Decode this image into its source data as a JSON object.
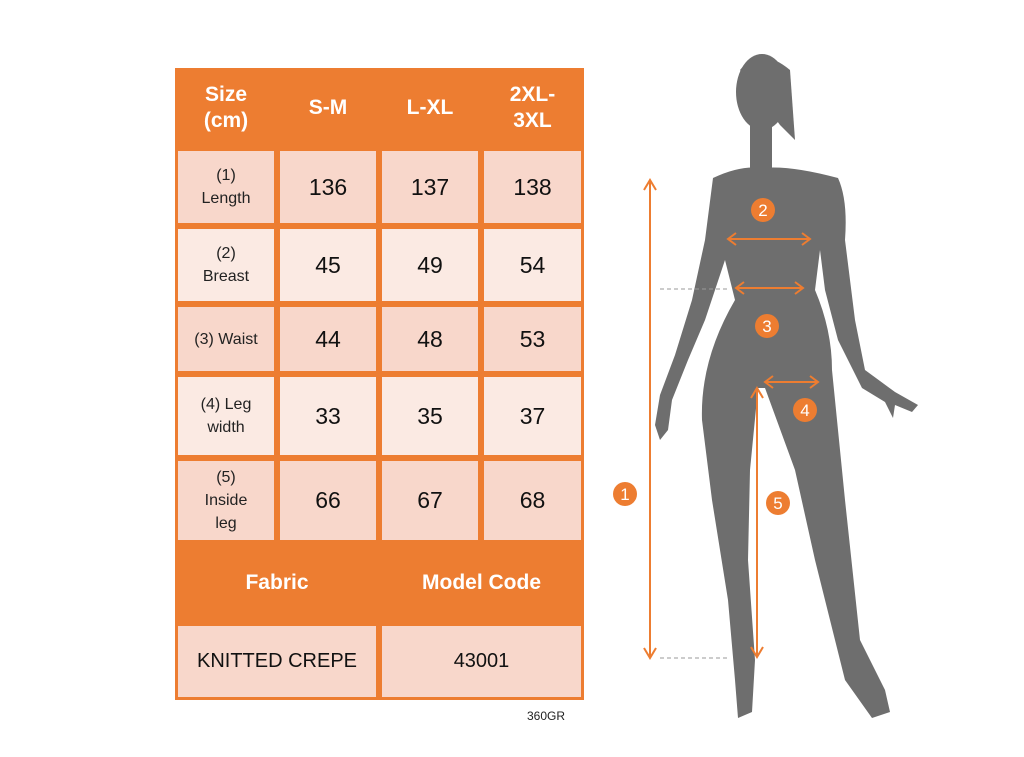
{
  "table": {
    "header": [
      "Size\n(cm)",
      "S-M",
      "L-XL",
      "2XL-\n3XL"
    ],
    "rows": [
      {
        "label": "(1)\nLength",
        "values": [
          "136",
          "137",
          "138"
        ]
      },
      {
        "label": "(2)\nBreast",
        "values": [
          "45",
          "49",
          "54"
        ]
      },
      {
        "label": "(3) Waist",
        "values": [
          "44",
          "48",
          "53"
        ]
      },
      {
        "label": "(4) Leg\nwidth",
        "values": [
          "33",
          "35",
          "37"
        ]
      },
      {
        "label": "(5)\nInside\nleg",
        "values": [
          "66",
          "67",
          "68"
        ]
      }
    ],
    "fabric_header": "Fabric",
    "model_code_header": "Model Code",
    "fabric_value": "KNITTED CREPE",
    "model_code_value": "43001"
  },
  "footer_note": "360GR",
  "figure": {
    "markers": [
      "1",
      "2",
      "3",
      "4",
      "5"
    ]
  },
  "colors": {
    "accent": "#ED7D31",
    "cell_dark": "#F8D7CB",
    "cell_light": "#FBEAE3",
    "silhouette": "#6E6E6E"
  }
}
